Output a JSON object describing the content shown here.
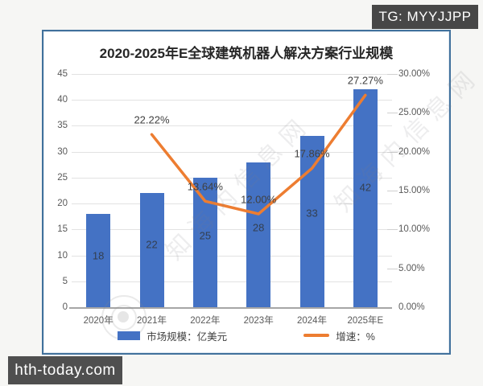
{
  "badges": {
    "telegram": "TG: MYYJJPP",
    "site": "hth-today.com"
  },
  "watermark": {
    "text": "知海内信息网"
  },
  "chart_data": {
    "type": "bar",
    "title": "2020-2025年E全球建筑机器人解决方案行业规模",
    "categories": [
      "2020年",
      "2021年",
      "2022年",
      "2023年",
      "2024年",
      "2025年E"
    ],
    "series": [
      {
        "name": "市场规模：亿美元",
        "type": "bar",
        "axis": "left",
        "color": "#4472C4",
        "values": [
          18,
          22,
          25,
          28,
          33,
          42
        ],
        "value_labels": [
          "18",
          "22",
          "25",
          "28",
          "33",
          "42"
        ]
      },
      {
        "name": "增速：%",
        "type": "line",
        "axis": "right",
        "color": "#ED7D31",
        "values": [
          null,
          22.22,
          13.64,
          12.0,
          17.86,
          27.27
        ],
        "value_labels": [
          null,
          "22.22%",
          "13.64%",
          "12.00%",
          "17.86%",
          "27.27%"
        ]
      }
    ],
    "left_axis": {
      "min": 0,
      "max": 45,
      "step": 5,
      "ticks": [
        "0",
        "5",
        "10",
        "15",
        "20",
        "25",
        "30",
        "35",
        "40",
        "45"
      ]
    },
    "right_axis": {
      "min": 0,
      "max": 30,
      "step": 5,
      "ticks": [
        "0.00%",
        "5.00%",
        "10.00%",
        "15.00%",
        "20.00%",
        "25.00%",
        "30.00%"
      ]
    },
    "grid": true,
    "legend_position": "bottom",
    "legend": [
      {
        "label": "市场规模：亿美元",
        "swatch": "bar"
      },
      {
        "label": "增速：%",
        "swatch": "line"
      }
    ]
  }
}
